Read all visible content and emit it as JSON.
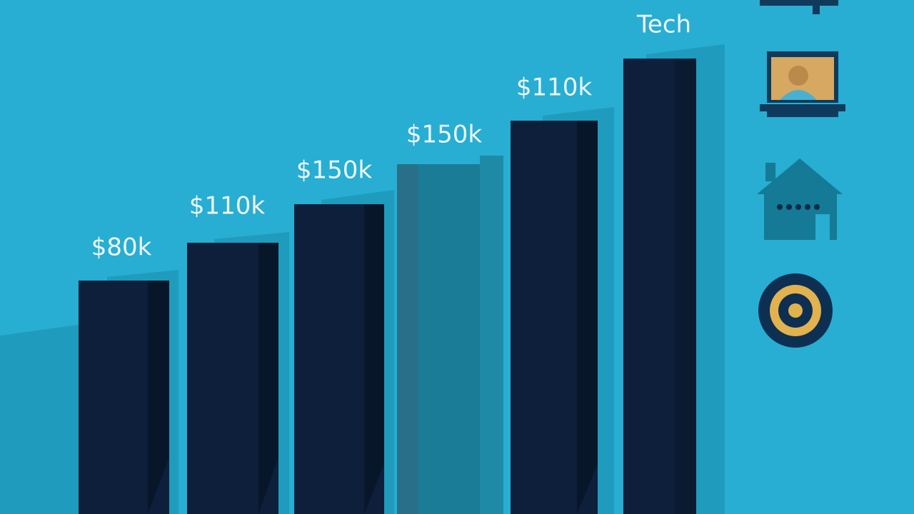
{
  "labels": [
    "$80k",
    "$110k",
    "$150k",
    "$150k",
    "$110k",
    "Tech"
  ]
}
